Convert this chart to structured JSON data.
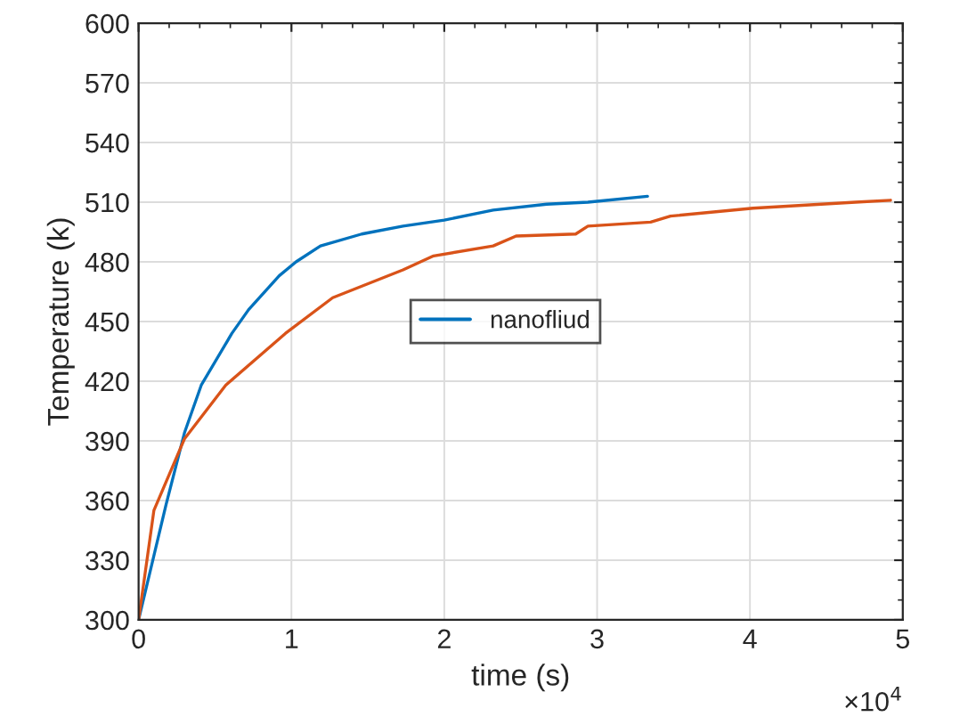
{
  "chart_data": {
    "type": "line",
    "xlabel": "time (s)",
    "ylabel": "Temperature (k)",
    "annotations": [
      "×10$^{4}$"
    ],
    "series": [
      {
        "name": "nanofliud",
        "color": "#0072bd",
        "x": [
          0,
          0.18,
          0.3,
          0.41,
          0.61,
          0.72,
          0.92,
          1.03,
          1.19,
          1.46,
          1.73,
          2.0,
          2.32,
          2.67,
          2.94,
          3.33
        ],
        "values": [
          300,
          358,
          394,
          418,
          444,
          456,
          473,
          480,
          488,
          494,
          498,
          501,
          506,
          509,
          510,
          513
        ]
      },
      {
        "color": "#d95319",
        "x": [
          0,
          0.1,
          0.3,
          0.57,
          0.96,
          1.27,
          1.73,
          1.93,
          2.32,
          2.47,
          2.86,
          2.94,
          3.35,
          3.48,
          4.02,
          4.69,
          4.92
        ],
        "values": [
          300,
          355,
          391,
          418,
          444,
          462,
          476,
          483,
          488,
          493,
          494,
          498,
          500,
          503,
          507,
          510,
          511
        ]
      }
    ],
    "xlim": [
      0,
      5
    ],
    "xticks": [
      0,
      1,
      2,
      3,
      4,
      5
    ],
    "ylim": [
      300,
      600
    ],
    "yticks": [
      300,
      330,
      360,
      390,
      420,
      450,
      480,
      510,
      540,
      570,
      600
    ],
    "grid": true,
    "legend": "center",
    "marker": "none",
    "line_style": "solid"
  }
}
